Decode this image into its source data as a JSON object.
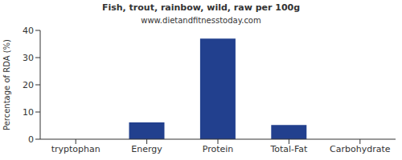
{
  "chart_data": {
    "type": "bar",
    "title": "Fish, trout, rainbow, wild, raw per 100g",
    "subtitle": "www.dietandfitnesstoday.com",
    "y_label": "Percentage of RDA (%)",
    "categories": [
      "tryptophan",
      "Energy",
      "Protein",
      "Total-Fat",
      "Carbohydrate"
    ],
    "values": [
      0,
      6.2,
      37,
      5.2,
      0
    ],
    "color": "#22408e",
    "ylim": [
      0,
      40
    ],
    "yticks": [
      0,
      10,
      20,
      30,
      40
    ],
    "grid": false
  }
}
